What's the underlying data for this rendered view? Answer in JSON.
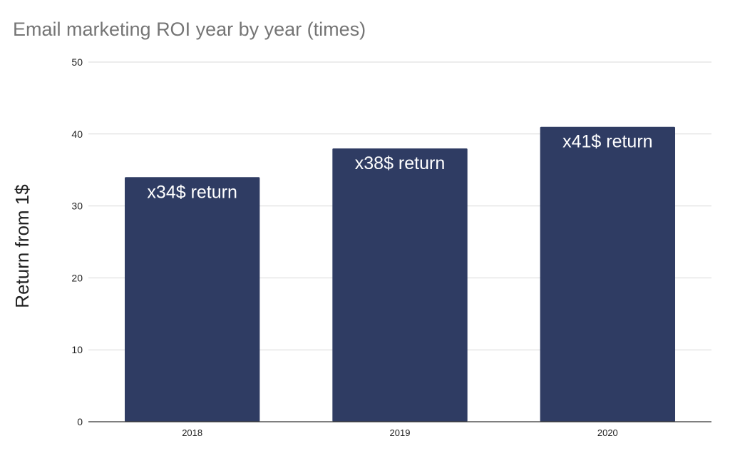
{
  "chart_data": {
    "type": "bar",
    "title": "Email marketing ROI year by year (times)",
    "xlabel": "",
    "ylabel": "Return from 1$",
    "categories": [
      "2018",
      "2019",
      "2020"
    ],
    "values": [
      34,
      38,
      41
    ],
    "data_labels": [
      "x34$ return",
      "x38$ return",
      "x41$ return"
    ],
    "ylim": [
      0,
      50
    ],
    "yticks": [
      0,
      10,
      20,
      30,
      40,
      50
    ],
    "ytick_labels": [
      "0",
      "10",
      "20",
      "30",
      "40",
      "50"
    ],
    "grid": true,
    "legend": "none",
    "colors": {
      "bar": "#2f3c63",
      "grid": "#d9d9d9",
      "axis": "#333333",
      "title": "#757575",
      "data_label": "#ffffff"
    }
  }
}
